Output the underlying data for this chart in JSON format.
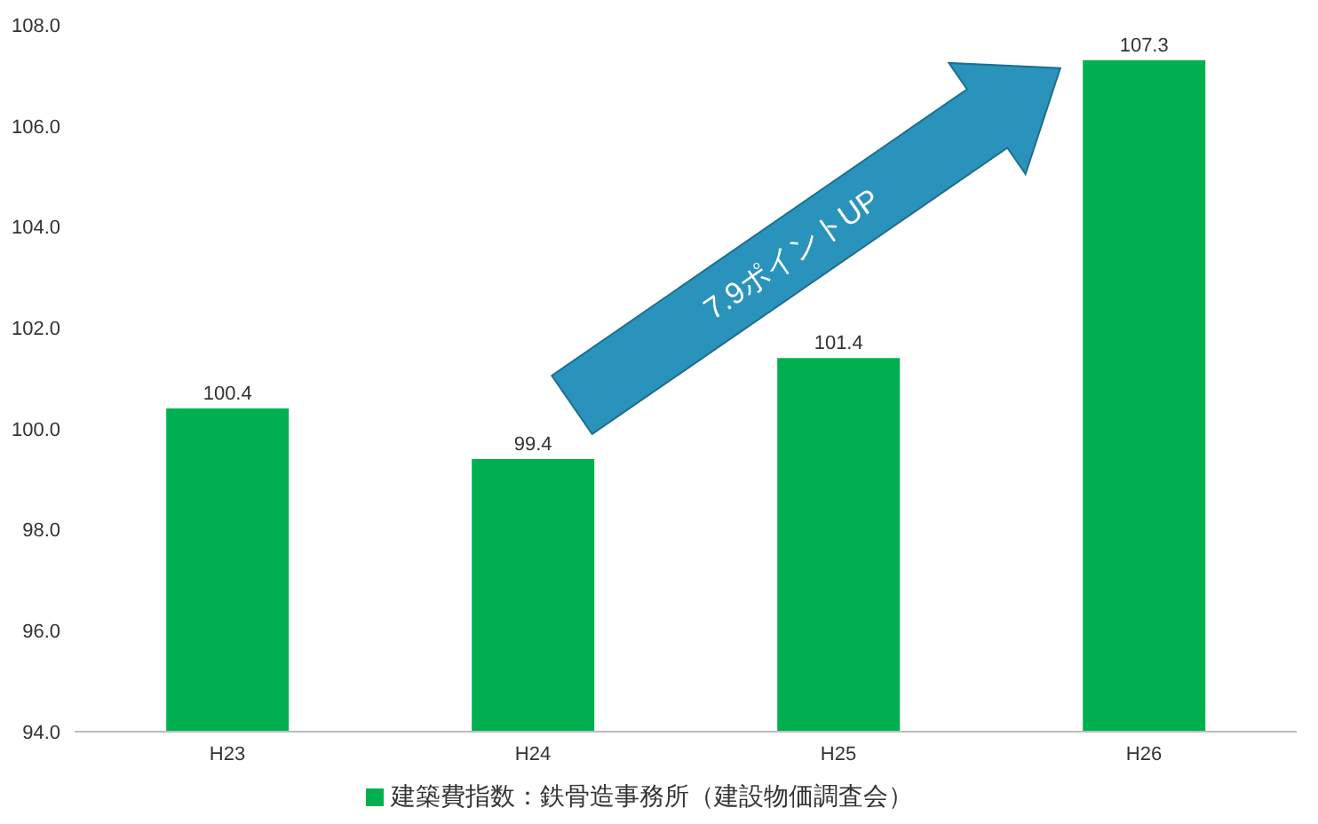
{
  "chart_data": {
    "type": "bar",
    "categories": [
      "H23",
      "H24",
      "H25",
      "H26"
    ],
    "series": [
      {
        "name": "建築費指数：鉄骨造事務所（建設物価調査会）",
        "color": "#00b050",
        "values": [
          100.4,
          99.4,
          101.4,
          107.3
        ]
      }
    ],
    "ylim": [
      94,
      108
    ],
    "yticks": [
      {
        "value": 94,
        "label": "94.0"
      },
      {
        "value": 96,
        "label": "96.0"
      },
      {
        "value": 98,
        "label": "98.0"
      },
      {
        "value": 100,
        "label": "100.0"
      },
      {
        "value": 102,
        "label": "102.0"
      },
      {
        "value": 104,
        "label": "104.0"
      },
      {
        "value": 106,
        "label": "106.0"
      },
      {
        "value": 108,
        "label": "108.0"
      }
    ],
    "data_labels": true,
    "grid": false,
    "legend": "bottom",
    "annotations": [
      "7.9ポイントUP"
    ]
  }
}
